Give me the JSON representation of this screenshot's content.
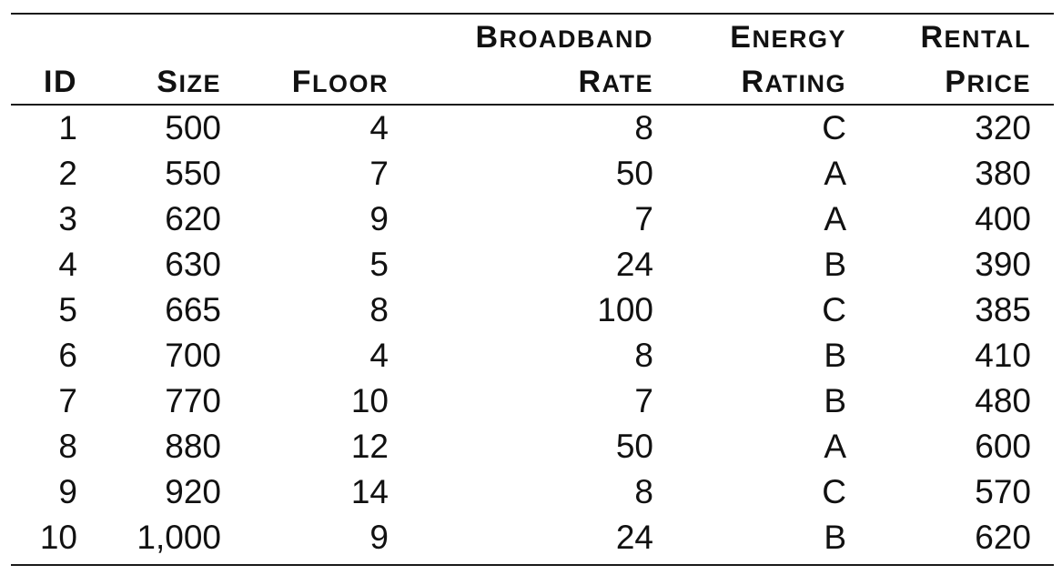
{
  "table": {
    "headers": [
      {
        "line1": "",
        "line2": "ID"
      },
      {
        "line1": "",
        "line2": "Size"
      },
      {
        "line1": "",
        "line2": "Floor"
      },
      {
        "line1": "Broadband",
        "line2": "Rate"
      },
      {
        "line1": "Energy",
        "line2": "Rating"
      },
      {
        "line1": "Rental",
        "line2": "Price"
      }
    ],
    "rows": [
      [
        "1",
        "500",
        "4",
        "8",
        "C",
        "320"
      ],
      [
        "2",
        "550",
        "7",
        "50",
        "A",
        "380"
      ],
      [
        "3",
        "620",
        "9",
        "7",
        "A",
        "400"
      ],
      [
        "4",
        "630",
        "5",
        "24",
        "B",
        "390"
      ],
      [
        "5",
        "665",
        "8",
        "100",
        "C",
        "385"
      ],
      [
        "6",
        "700",
        "4",
        "8",
        "B",
        "410"
      ],
      [
        "7",
        "770",
        "10",
        "7",
        "B",
        "480"
      ],
      [
        "8",
        "880",
        "12",
        "50",
        "A",
        "600"
      ],
      [
        "9",
        "920",
        "14",
        "8",
        "C",
        "570"
      ],
      [
        "10",
        "1,000",
        "9",
        "24",
        "B",
        "620"
      ]
    ]
  }
}
